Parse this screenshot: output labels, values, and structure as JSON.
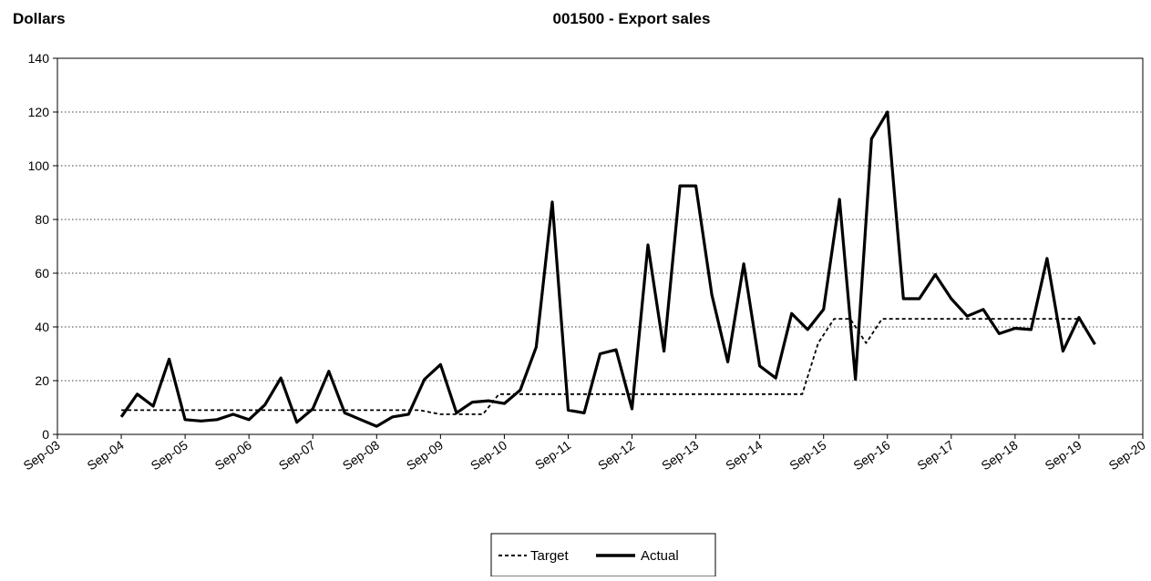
{
  "chart_data": {
    "type": "line",
    "title": "001500 - Export sales",
    "ylabel": "Dollars",
    "xlabel": "",
    "ylim": [
      0,
      140
    ],
    "yticks": [
      0,
      20,
      40,
      60,
      80,
      100,
      120,
      140
    ],
    "xlim": [
      2003.667,
      2020.667
    ],
    "xtick_labels": [
      "Sep-03",
      "Sep-04",
      "Sep-05",
      "Sep-06",
      "Sep-07",
      "Sep-08",
      "Sep-09",
      "Sep-10",
      "Sep-11",
      "Sep-12",
      "Sep-13",
      "Sep-14",
      "Sep-15",
      "Sep-16",
      "Sep-17",
      "Sep-18",
      "Sep-19",
      "Sep-20"
    ],
    "grid": {
      "horizontal": true,
      "style": "dotted"
    },
    "legend": {
      "position": "bottom-center",
      "entries": [
        "Target",
        "Actual"
      ]
    },
    "series": [
      {
        "name": "Target",
        "style": "dashed",
        "color": "#000000",
        "x": [
          2004.667,
          2005.667,
          2006.667,
          2007.667,
          2008.667,
          2009.333,
          2009.667,
          2010.333,
          2010.583,
          2011.667,
          2012.667,
          2013.667,
          2014.667,
          2015.333,
          2015.583,
          2015.833,
          2016.083,
          2016.333,
          2016.583,
          2017.667,
          2018.667,
          2019.667
        ],
        "y": [
          9,
          9,
          9,
          9,
          9,
          9,
          7.5,
          7.5,
          15,
          15,
          15,
          15,
          15,
          15,
          34,
          43,
          43,
          34,
          43,
          43,
          43,
          43
        ]
      },
      {
        "name": "Actual",
        "style": "solid",
        "color": "#000000",
        "x": [
          2004.667,
          2004.917,
          2005.167,
          2005.417,
          2005.667,
          2005.917,
          2006.167,
          2006.417,
          2006.667,
          2006.917,
          2007.167,
          2007.417,
          2007.667,
          2007.917,
          2008.167,
          2008.417,
          2008.667,
          2008.917,
          2009.167,
          2009.417,
          2009.667,
          2009.917,
          2010.167,
          2010.417,
          2010.667,
          2010.917,
          2011.167,
          2011.417,
          2011.667,
          2011.917,
          2012.167,
          2012.417,
          2012.667,
          2012.917,
          2013.167,
          2013.417,
          2013.667,
          2013.917,
          2014.167,
          2014.417,
          2014.667,
          2014.917,
          2015.167,
          2015.417,
          2015.667,
          2015.917,
          2016.167,
          2016.417,
          2016.667,
          2016.917,
          2017.167,
          2017.417,
          2017.667,
          2017.917,
          2018.167,
          2018.417,
          2018.667,
          2018.917,
          2019.167,
          2019.417,
          2019.667,
          2019.917
        ],
        "y": [
          6.5,
          15,
          10.5,
          28,
          5.5,
          5,
          5.5,
          7.5,
          5.5,
          11,
          21,
          4.5,
          9.5,
          23.5,
          8,
          5.5,
          3,
          6.5,
          7.5,
          20.5,
          26,
          8,
          12,
          12.5,
          11.5,
          16.5,
          32.5,
          86.5,
          9,
          8,
          30,
          31.5,
          9.5,
          70.5,
          31,
          92.5,
          92.5,
          52,
          27,
          63.5,
          25.5,
          21,
          45,
          39,
          46.5,
          87.5,
          20.5,
          110,
          120,
          50.5,
          50.5,
          59.5,
          50.5,
          44,
          46.5,
          37.5,
          39.5,
          39,
          65.5,
          31,
          43.5,
          33.5
        ]
      }
    ]
  }
}
